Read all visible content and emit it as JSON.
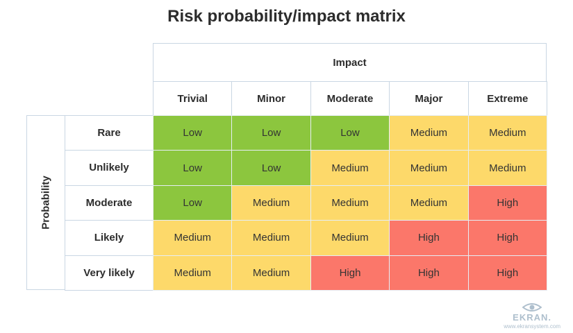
{
  "title": "Risk probability/impact matrix",
  "impact_label": "Impact",
  "probability_label": "Probability",
  "impact_levels": [
    "Trivial",
    "Minor",
    "Moderate",
    "Major",
    "Extreme"
  ],
  "probability_levels": [
    "Rare",
    "Unlikely",
    "Moderate",
    "Likely",
    "Very likely"
  ],
  "matrix": [
    [
      "Low",
      "Low",
      "Low",
      "Medium",
      "Medium"
    ],
    [
      "Low",
      "Low",
      "Medium",
      "Medium",
      "Medium"
    ],
    [
      "Low",
      "Medium",
      "Medium",
      "Medium",
      "High"
    ],
    [
      "Medium",
      "Medium",
      "Medium",
      "High",
      "High"
    ],
    [
      "Medium",
      "Medium",
      "High",
      "High",
      "High"
    ]
  ],
  "colors": {
    "Low": "#8cc63e",
    "Medium": "#fdd96a",
    "High": "#fb776a"
  },
  "logo": {
    "brand": "EKRAN.",
    "url": "www.ekransystem.com"
  }
}
